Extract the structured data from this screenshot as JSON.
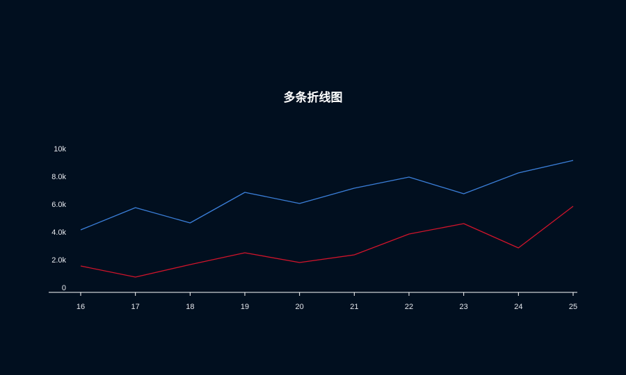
{
  "chart_data": {
    "type": "line",
    "title": "多条折线图",
    "xlabel": "",
    "ylabel": "",
    "categories": [
      "16",
      "17",
      "18",
      "19",
      "20",
      "21",
      "22",
      "23",
      "24",
      "25"
    ],
    "series": [
      {
        "color": "#3b7fd9",
        "values": [
          4500,
          6100,
          5000,
          7200,
          6400,
          7500,
          8300,
          7100,
          8600,
          9500
        ]
      },
      {
        "color": "#d1142b",
        "values": [
          1900,
          1100,
          2000,
          2850,
          2150,
          2700,
          4200,
          4950,
          3200,
          6200
        ]
      }
    ],
    "yticks": [
      0,
      2000,
      4000,
      6000,
      8000,
      10000
    ],
    "ytick_labels": [
      "0",
      "2.0k",
      "4.0k",
      "6.0k",
      "8.0k",
      "10k"
    ],
    "ylim": [
      0,
      10000
    ],
    "grid": false,
    "legend": "none",
    "background": "#010f1f",
    "axis_color": "#ffffff",
    "text_color": "#e6e9ee"
  }
}
